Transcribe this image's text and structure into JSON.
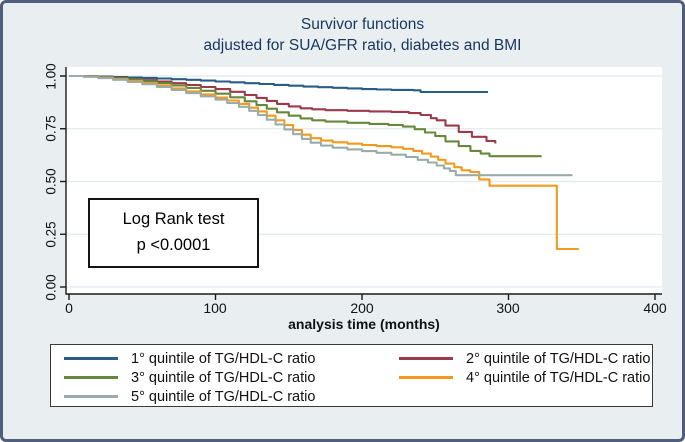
{
  "figure": {
    "title_line1": "Survivor functions",
    "title_line2": "adjusted for SUA/GFR ratio, diabetes and BMI"
  },
  "annotation": {
    "line1": "Log Rank test",
    "line2": "p <0.0001"
  },
  "axes": {
    "x_label": "analysis time (months)",
    "x_tick_labels": [
      "0",
      "100",
      "200",
      "300",
      "400"
    ],
    "y_tick_labels": [
      "1.00",
      "0.75",
      "0.50",
      "0.25",
      "0.00"
    ]
  },
  "colors": {
    "background": "#e9eff1",
    "frame_border": "#4f5e7b",
    "plot_background": "#ffffff",
    "gridline": "#e0ecee",
    "axis": "#1a1a1a",
    "title_text": "#17365d"
  },
  "chart_data": {
    "type": "line",
    "subtype": "kaplan-meier-step",
    "title": "Survivor functions adjusted for SUA/GFR ratio, diabetes and BMI",
    "xlabel": "analysis time (months)",
    "ylabel": "",
    "xlim": [
      0,
      400
    ],
    "ylim": [
      0,
      1
    ],
    "x_ticks": [
      0,
      100,
      200,
      300,
      400
    ],
    "y_ticks": [
      0.0,
      0.25,
      0.5,
      0.75,
      1.0
    ],
    "grid": "horizontal",
    "legend_position": "bottom",
    "annotation": "Log Rank test p <0.0001",
    "series": [
      {
        "name": "1° quintile of TG/HDL-C ratio",
        "color": "#2a5d85",
        "points": [
          [
            0,
            1.0
          ],
          [
            10,
            0.999
          ],
          [
            20,
            0.997
          ],
          [
            30,
            0.995
          ],
          [
            40,
            0.993
          ],
          [
            50,
            0.991
          ],
          [
            60,
            0.988
          ],
          [
            70,
            0.985
          ],
          [
            80,
            0.982
          ],
          [
            90,
            0.978
          ],
          [
            100,
            0.974
          ],
          [
            110,
            0.97
          ],
          [
            120,
            0.966
          ],
          [
            130,
            0.962
          ],
          [
            140,
            0.958
          ],
          [
            150,
            0.954
          ],
          [
            160,
            0.95
          ],
          [
            170,
            0.947
          ],
          [
            180,
            0.944
          ],
          [
            190,
            0.941
          ],
          [
            200,
            0.938
          ],
          [
            210,
            0.936
          ],
          [
            220,
            0.934
          ],
          [
            235,
            0.932
          ],
          [
            240,
            0.924
          ],
          [
            286,
            0.924
          ]
        ]
      },
      {
        "name": "2° quintile of TG/HDL-C ratio",
        "color": "#9c3a4a",
        "points": [
          [
            0,
            1.0
          ],
          [
            10,
            0.998
          ],
          [
            20,
            0.995
          ],
          [
            30,
            0.991
          ],
          [
            40,
            0.986
          ],
          [
            50,
            0.98
          ],
          [
            60,
            0.974
          ],
          [
            70,
            0.966
          ],
          [
            80,
            0.957
          ],
          [
            90,
            0.948
          ],
          [
            100,
            0.938
          ],
          [
            110,
            0.925
          ],
          [
            120,
            0.91
          ],
          [
            128,
            0.896
          ],
          [
            135,
            0.882
          ],
          [
            142,
            0.868
          ],
          [
            150,
            0.856
          ],
          [
            158,
            0.847
          ],
          [
            166,
            0.842
          ],
          [
            175,
            0.838
          ],
          [
            190,
            0.835
          ],
          [
            205,
            0.832
          ],
          [
            220,
            0.83
          ],
          [
            232,
            0.824
          ],
          [
            240,
            0.815
          ],
          [
            247,
            0.8
          ],
          [
            251,
            0.79
          ],
          [
            257,
            0.765
          ],
          [
            266,
            0.735
          ],
          [
            275,
            0.712
          ],
          [
            285,
            0.692
          ],
          [
            291,
            0.68
          ]
        ]
      },
      {
        "name": "3° quintile of TG/HDL-C ratio",
        "color": "#67883c",
        "points": [
          [
            0,
            1.0
          ],
          [
            10,
            0.998
          ],
          [
            20,
            0.994
          ],
          [
            30,
            0.989
          ],
          [
            40,
            0.983
          ],
          [
            50,
            0.975
          ],
          [
            60,
            0.966
          ],
          [
            70,
            0.955
          ],
          [
            80,
            0.943
          ],
          [
            90,
            0.93
          ],
          [
            100,
            0.916
          ],
          [
            110,
            0.899
          ],
          [
            120,
            0.88
          ],
          [
            128,
            0.862
          ],
          [
            135,
            0.845
          ],
          [
            142,
            0.828
          ],
          [
            150,
            0.812
          ],
          [
            158,
            0.799
          ],
          [
            166,
            0.79
          ],
          [
            175,
            0.784
          ],
          [
            190,
            0.778
          ],
          [
            205,
            0.773
          ],
          [
            218,
            0.768
          ],
          [
            228,
            0.76
          ],
          [
            236,
            0.748
          ],
          [
            243,
            0.732
          ],
          [
            250,
            0.715
          ],
          [
            257,
            0.69
          ],
          [
            266,
            0.668
          ],
          [
            274,
            0.645
          ],
          [
            281,
            0.632
          ],
          [
            287,
            0.62
          ],
          [
            322,
            0.615
          ]
        ]
      },
      {
        "name": "4° quintile of TG/HDL-C ratio",
        "color": "#f39a1e",
        "points": [
          [
            0,
            1.0
          ],
          [
            10,
            0.997
          ],
          [
            20,
            0.992
          ],
          [
            30,
            0.985
          ],
          [
            40,
            0.976
          ],
          [
            50,
            0.966
          ],
          [
            60,
            0.954
          ],
          [
            70,
            0.941
          ],
          [
            80,
            0.927
          ],
          [
            90,
            0.913
          ],
          [
            100,
            0.898
          ],
          [
            108,
            0.884
          ],
          [
            116,
            0.868
          ],
          [
            123,
            0.85
          ],
          [
            129,
            0.832
          ],
          [
            135,
            0.812
          ],
          [
            141,
            0.79
          ],
          [
            147,
            0.768
          ],
          [
            153,
            0.744
          ],
          [
            159,
            0.722
          ],
          [
            165,
            0.705
          ],
          [
            172,
            0.694
          ],
          [
            180,
            0.686
          ],
          [
            190,
            0.679
          ],
          [
            200,
            0.673
          ],
          [
            210,
            0.668
          ],
          [
            220,
            0.662
          ],
          [
            228,
            0.655
          ],
          [
            235,
            0.645
          ],
          [
            241,
            0.632
          ],
          [
            247,
            0.618
          ],
          [
            252,
            0.603
          ],
          [
            257,
            0.585
          ],
          [
            263,
            0.568
          ],
          [
            268,
            0.553
          ],
          [
            274,
            0.545
          ],
          [
            280,
            0.51
          ],
          [
            287,
            0.48
          ],
          [
            332,
            0.48
          ],
          [
            333,
            0.18
          ],
          [
            348,
            0.18
          ]
        ]
      },
      {
        "name": "5° quintile of TG/HDL-C ratio",
        "color": "#9aaca9",
        "points": [
          [
            0,
            1.0
          ],
          [
            10,
            0.996
          ],
          [
            20,
            0.99
          ],
          [
            30,
            0.982
          ],
          [
            40,
            0.972
          ],
          [
            50,
            0.961
          ],
          [
            60,
            0.948
          ],
          [
            70,
            0.934
          ],
          [
            80,
            0.919
          ],
          [
            90,
            0.904
          ],
          [
            100,
            0.888
          ],
          [
            108,
            0.872
          ],
          [
            116,
            0.854
          ],
          [
            123,
            0.835
          ],
          [
            129,
            0.815
          ],
          [
            135,
            0.793
          ],
          [
            141,
            0.77
          ],
          [
            147,
            0.747
          ],
          [
            153,
            0.724
          ],
          [
            159,
            0.702
          ],
          [
            165,
            0.684
          ],
          [
            172,
            0.67
          ],
          [
            180,
            0.66
          ],
          [
            190,
            0.652
          ],
          [
            200,
            0.644
          ],
          [
            210,
            0.636
          ],
          [
            220,
            0.627
          ],
          [
            230,
            0.616
          ],
          [
            238,
            0.603
          ],
          [
            245,
            0.59
          ],
          [
            251,
            0.576
          ],
          [
            256,
            0.562
          ],
          [
            260,
            0.55
          ],
          [
            264,
            0.53
          ],
          [
            343,
            0.525
          ]
        ]
      }
    ]
  }
}
